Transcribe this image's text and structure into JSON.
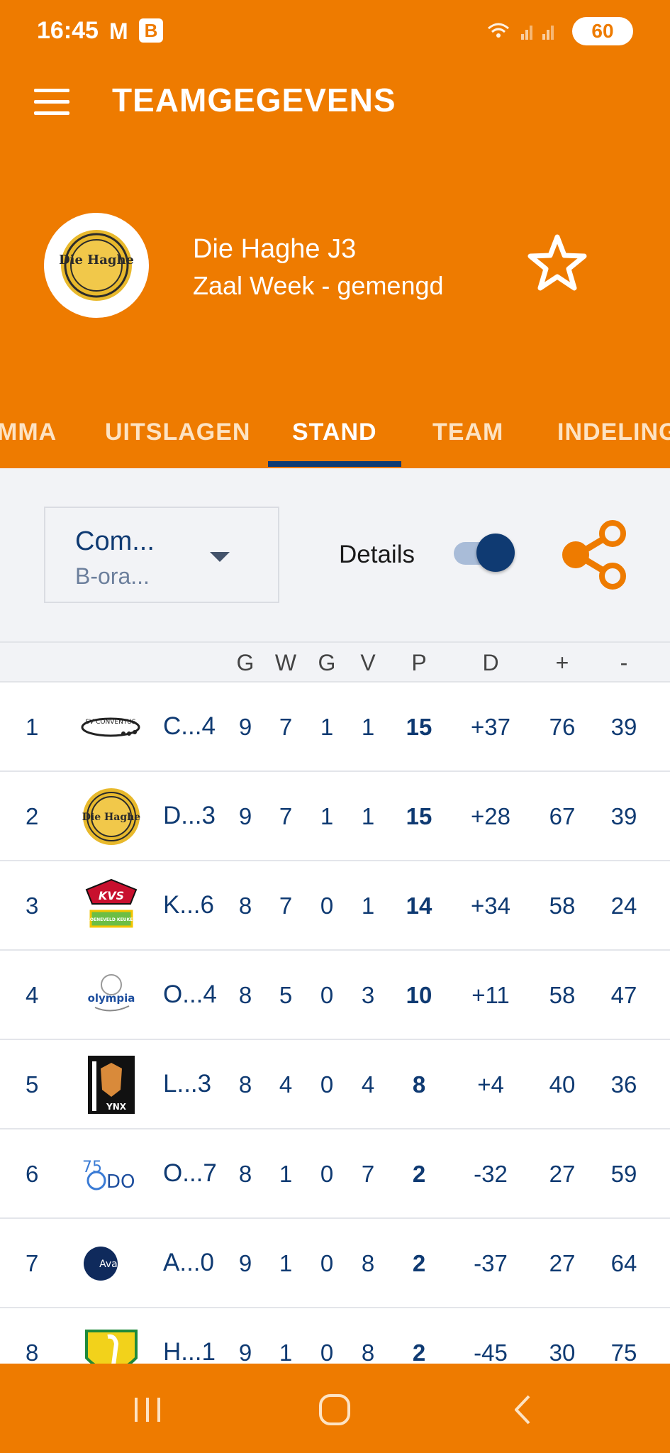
{
  "status": {
    "time": "16:45",
    "icon_m": "M",
    "icon_b": "B",
    "signal_icons": "wifi-icon signal-icon signal-icon",
    "battery": "60"
  },
  "header": {
    "title": "TEAMGEGEVENS",
    "team_name": "Die Haghe J3",
    "team_competition": "Zaal Week - gemengd"
  },
  "tabs": [
    {
      "label": "MMA"
    },
    {
      "label": "UITSLAGEN"
    },
    {
      "label": "STAND"
    },
    {
      "label": "TEAM"
    },
    {
      "label": "INDELING"
    }
  ],
  "active_tab": "STAND",
  "filter": {
    "dropdown_main": "Com...",
    "dropdown_sub": "B-ora...",
    "details_label": "Details",
    "details_on": true
  },
  "table": {
    "headers": [
      "G",
      "W",
      "G",
      "V",
      "P",
      "D",
      "+",
      "-"
    ],
    "rows": [
      {
        "pos": "1",
        "name": "C...4",
        "g": "9",
        "w": "7",
        "gl": "1",
        "v": "1",
        "p": "15",
        "d": "+37",
        "plus": "76",
        "minus": "39",
        "logo": "sv-conventus-logo"
      },
      {
        "pos": "2",
        "name": "D...3",
        "g": "9",
        "w": "7",
        "gl": "1",
        "v": "1",
        "p": "15",
        "d": "+28",
        "plus": "67",
        "minus": "39",
        "logo": "die-haghe-logo"
      },
      {
        "pos": "3",
        "name": "K...6",
        "g": "8",
        "w": "7",
        "gl": "0",
        "v": "1",
        "p": "14",
        "d": "+34",
        "plus": "58",
        "minus": "24",
        "logo": "kvs-logo"
      },
      {
        "pos": "4",
        "name": "O...4",
        "g": "8",
        "w": "5",
        "gl": "0",
        "v": "3",
        "p": "10",
        "d": "+11",
        "plus": "58",
        "minus": "47",
        "logo": "olympia-logo"
      },
      {
        "pos": "5",
        "name": "L...3",
        "g": "8",
        "w": "4",
        "gl": "0",
        "v": "4",
        "p": "8",
        "d": "+4",
        "plus": "40",
        "minus": "36",
        "logo": "lynx-logo"
      },
      {
        "pos": "6",
        "name": "O...7",
        "g": "8",
        "w": "1",
        "gl": "0",
        "v": "7",
        "p": "2",
        "d": "-32",
        "plus": "27",
        "minus": "59",
        "logo": "odo-logo"
      },
      {
        "pos": "7",
        "name": "A...0",
        "g": "9",
        "w": "1",
        "gl": "0",
        "v": "8",
        "p": "2",
        "d": "-37",
        "plus": "27",
        "minus": "64",
        "logo": "avanti-logo"
      },
      {
        "pos": "8",
        "name": "H...1",
        "g": "9",
        "w": "1",
        "gl": "0",
        "v": "8",
        "p": "2",
        "d": "-45",
        "plus": "30",
        "minus": "75",
        "logo": "stork-club-logo"
      }
    ]
  },
  "logo_text": {
    "conventus": "SV CONVENTUS",
    "haghe": "Die Haghe",
    "kvs": "KVS",
    "kvs_sponsor": "GROENEVELD KEUKENS",
    "olympia": "olympia",
    "lynx": "YNX",
    "odo_top": "75",
    "odo": "DO",
    "avanti": "Avanti"
  },
  "colors": {
    "brand_orange": "#EE7B00",
    "navy": "#0F3A72",
    "filter_bg": "#F2F3F6"
  }
}
